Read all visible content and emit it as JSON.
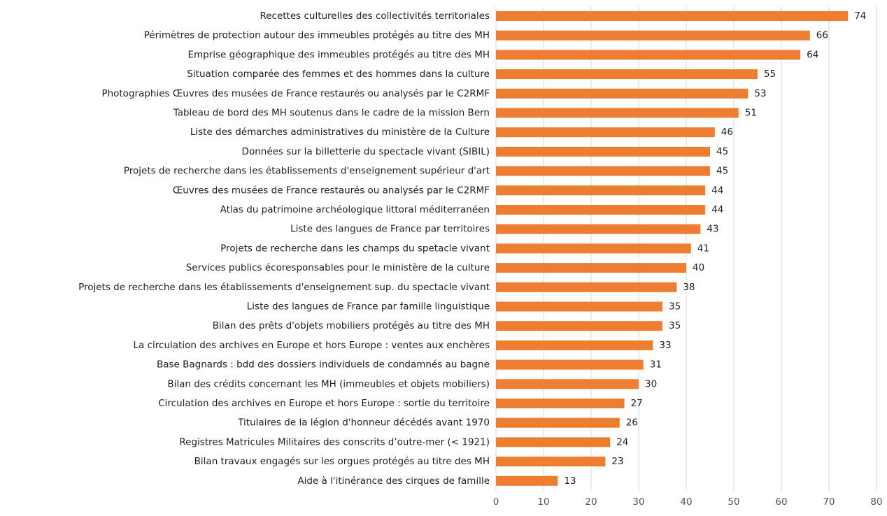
{
  "chart_data": {
    "type": "barh",
    "categories": [
      "Recettes culturelles des collectivités territoriales",
      "Périmètres de protection autour des immeubles protégés au titre des MH",
      "Emprise géographique des immeubles protégés au titre des MH",
      "Situation comparée des femmes et des hommes dans la culture",
      "Photographies Œuvres des musées de France restaurés ou analysés par le C2RMF",
      "Tableau de bord des MH soutenus dans le cadre de la mission Bern",
      "Liste des démarches administratives du ministère de la Culture",
      "Données sur la billetterie du spectacle vivant (SIBIL)",
      "Projets de recherche dans les établissements d'enseignement supérieur d'art",
      "Œuvres des musées de France restaurés ou analysés par le C2RMF",
      "Atlas du patrimoine archéologique littoral méditerranéen",
      "Liste des langues de France par territoires",
      "Projets de recherche dans les champs du spetacle vivant",
      "Services publics écoresponsables pour le ministère de la culture",
      "Projets de recherche dans les établissements d'enseignement sup. du spectacle vivant",
      "Liste des langues de France par famille linguistique",
      "Bilan des prêts d'objets mobiliers protégés au titre des MH",
      "La circulation des archives en Europe et hors Europe : ventes aux enchères",
      "Base Bagnards : bdd des dossiers individuels de condamnés au bagne",
      "Bilan des crédits concernant les MH (immeubles et objets mobiliers)",
      "Circulation des archives en Europe et hors Europe : sortie du territoire",
      "Titulaires de la légion d'honneur décédés avant 1970",
      "Registres Matricules Militaires des conscrits d’outre-mer (< 1921)",
      "Bilan travaux engagés sur les orgues protégés au titre des MH",
      "Aide à l'itinérance des cirques de famille"
    ],
    "values": [
      74,
      66,
      64,
      55,
      53,
      51,
      46,
      45,
      45,
      44,
      44,
      43,
      41,
      40,
      38,
      35,
      35,
      33,
      31,
      30,
      27,
      26,
      24,
      23,
      13
    ],
    "color": "#ed7d31",
    "xlim": [
      0,
      80
    ],
    "xticks": [
      0,
      10,
      20,
      30,
      40,
      50,
      60,
      70,
      80
    ],
    "grid": true
  }
}
